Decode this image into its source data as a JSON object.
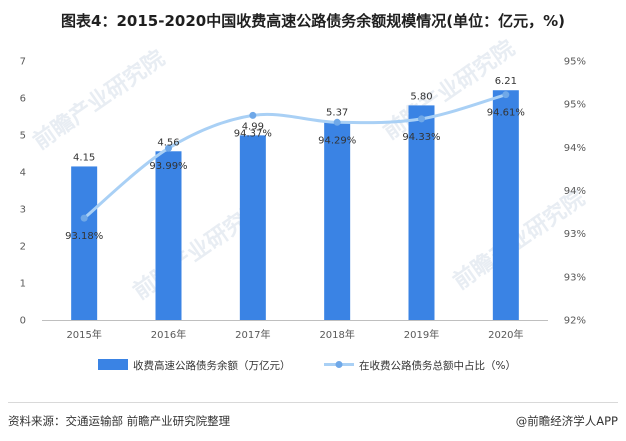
{
  "title": "图表4：2015-2020中国收费高速公路债务余额规模情况(单位：亿元，%)",
  "watermark": "前瞻产业研究院",
  "footer": {
    "source": "资料来源：交通运输部 前瞻产业研究院整理",
    "brand": "@前瞻经济学人APP"
  },
  "colors": {
    "bar": "#3a83e4",
    "line": "#a9d0f5",
    "point": "#6fa8e8"
  },
  "chart_data": {
    "type": "bar+line",
    "categories": [
      "2015年",
      "2016年",
      "2017年",
      "2018年",
      "2019年",
      "2020年"
    ],
    "series": [
      {
        "name": "收费高速公路债务余额（万亿元）",
        "type": "bar",
        "axis": "left",
        "values": [
          4.15,
          4.56,
          4.99,
          5.37,
          5.8,
          6.21
        ],
        "labels": [
          "4.15",
          "4.56",
          "4.99",
          "5.37",
          "5.80",
          "6.21"
        ]
      },
      {
        "name": "在收费公路债务总额中占比（%）",
        "type": "line",
        "axis": "right",
        "values": [
          93.18,
          93.99,
          94.37,
          94.29,
          94.33,
          94.61
        ],
        "labels": [
          "93.18%",
          "93.99%",
          "94.37%",
          "94.29%",
          "94.33%",
          "94.61%"
        ]
      }
    ],
    "left_axis": {
      "min": 0,
      "max": 7,
      "ticks": [
        "0",
        "1",
        "2",
        "3",
        "4",
        "5",
        "6",
        "7"
      ]
    },
    "right_axis": {
      "min": 92,
      "max": 95,
      "ticks": [
        "92%",
        "93%",
        "93%",
        "94%",
        "94%",
        "95%",
        "95%"
      ]
    }
  }
}
